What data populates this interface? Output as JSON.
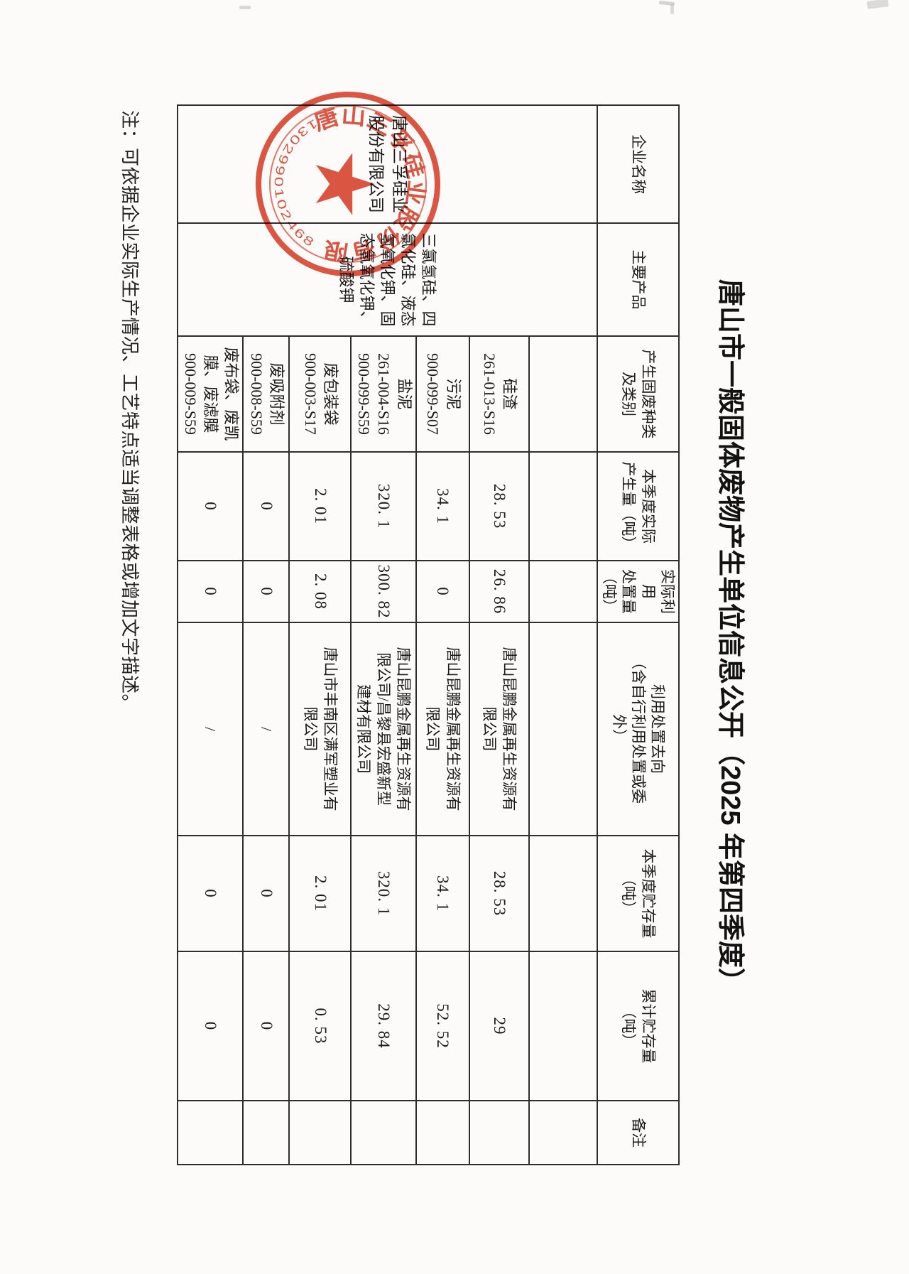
{
  "page": {
    "title": "唐山市一般固体废物产生单位信息公开（2025 年第四季度）",
    "note": "注：可依据企业实际生产情况、工艺特点适当调整表格或增加文字描述。"
  },
  "table": {
    "headers": [
      "企业名称",
      "主要产品",
      "产生固废种类\n及类别",
      "本季度实际\n产生量（吨）",
      "实际利用\n处置量\n（吨）",
      "利用处置去向\n（含自行利用处置或委\n外）",
      "本季度贮存量\n（吨）",
      "累计贮存量\n（吨）",
      "备注"
    ],
    "company": {
      "name": "唐山三孚硅业\n股份有限公司",
      "products": "三氯氢硅、四\n氯化硅、液态\n氢氧化钾、固\n态氢氧化钾、\n硫酸钾"
    },
    "rows": [
      [
        "",
        "",
        "",
        "",
        "",
        "",
        ""
      ],
      [
        "硅渣\n261-013-S16",
        "28. 53",
        "26. 86",
        "唐山昆鹏金属再生资源有\n限公司",
        "28. 53",
        "29",
        ""
      ],
      [
        "污泥\n900-099-S07",
        "34. 1",
        "0",
        "唐山昆鹏金属再生资源有\n限公司",
        "34. 1",
        "52. 52",
        ""
      ],
      [
        "盐泥\n261-004-S16\n900-099-S59",
        "320. 1",
        "300. 82",
        "唐山昆鹏金属再生资源有\n限公司/昌黎县宏盛新型\n建材有限公司",
        "320. 1",
        "29. 84",
        ""
      ],
      [
        "废包装袋\n900-003-S17",
        "2. 01",
        "2. 08",
        "唐山市丰南区满军塑业有\n限公司",
        "2. 01",
        "0. 53",
        ""
      ],
      [
        "废吸附剂\n900-008-S59",
        "0",
        "0",
        "/",
        "0",
        "0",
        ""
      ],
      [
        "废布袋、废凯\n膜、废滤膜\n900-009-S59",
        "0",
        "0",
        "/",
        "0",
        "0",
        ""
      ]
    ]
  },
  "stamp": {
    "company": "唐山三孚硅业股份有限公司",
    "code": "1302990102468",
    "color": "#d9402a"
  }
}
